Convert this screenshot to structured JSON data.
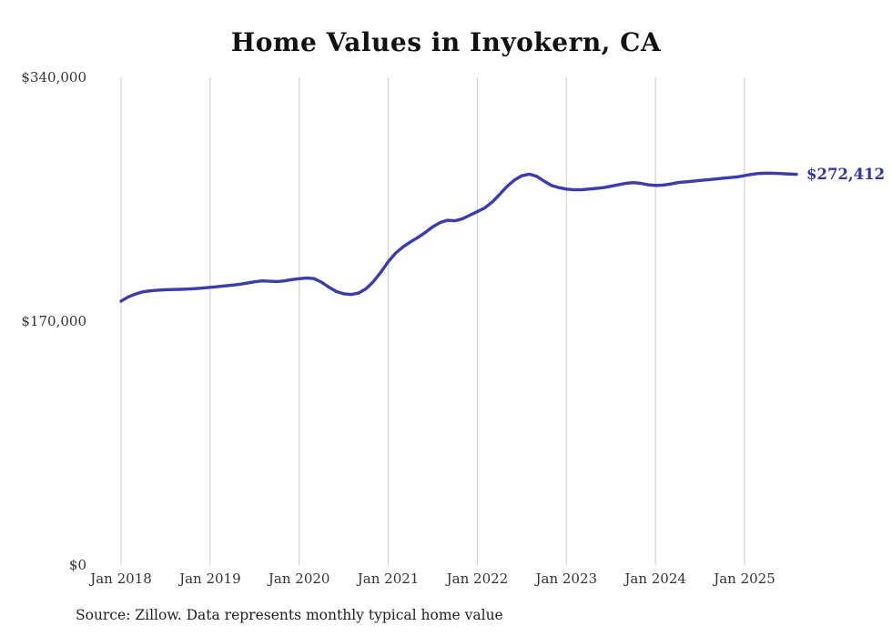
{
  "page": {
    "title": "Home Values in Inyokern, CA",
    "end_value_label": "$272,412",
    "source_note": "Source: Zillow. Data represents monthly typical home value"
  },
  "colors": {
    "line": "#3a3aba",
    "end_label": "#3333ad",
    "grid": "#cccccc",
    "axis_text": "#333333",
    "title_text": "#111111"
  },
  "chart_data": {
    "type": "line",
    "title": "Home Values in Inyokern, CA",
    "x_start": "2018-01",
    "x_end": "2025-08",
    "frequency": "monthly",
    "xticks": [
      "Jan 2018",
      "Jan 2019",
      "Jan 2020",
      "Jan 2021",
      "Jan 2022",
      "Jan 2023",
      "Jan 2024",
      "Jan 2025"
    ],
    "yticks": [
      {
        "value": 0,
        "label": "$0"
      },
      {
        "value": 170000,
        "label": "$170,000"
      },
      {
        "value": 340000,
        "label": "$340,000"
      }
    ],
    "ylim": [
      0,
      340000
    ],
    "grid": "vertical",
    "legend": "none",
    "ylabel": "",
    "xlabel": "",
    "final_value": 272412,
    "values": [
      184000,
      187000,
      189000,
      190500,
      191200,
      191600,
      191900,
      192100,
      192200,
      192400,
      192700,
      193100,
      193600,
      194100,
      194600,
      195100,
      195700,
      196600,
      197500,
      198100,
      197900,
      197600,
      198100,
      199000,
      199600,
      200100,
      199700,
      197200,
      193700,
      190700,
      189100,
      188600,
      189600,
      192600,
      197600,
      204100,
      211500,
      217500,
      221800,
      225300,
      228400,
      231900,
      235800,
      238800,
      240400,
      240000,
      241400,
      243900,
      246400,
      249000,
      253000,
      258400,
      263900,
      268400,
      271400,
      272500,
      271000,
      267600,
      264600,
      263100,
      262100,
      261600,
      261600,
      262100,
      262600,
      263100,
      264100,
      265100,
      266100,
      266600,
      266100,
      265100,
      264600,
      264900,
      265600,
      266600,
      267100,
      267600,
      268100,
      268600,
      269100,
      269600,
      270100,
      270600,
      271500,
      272400,
      273000,
      273200,
      273100,
      272900,
      272600,
      272412
    ]
  }
}
